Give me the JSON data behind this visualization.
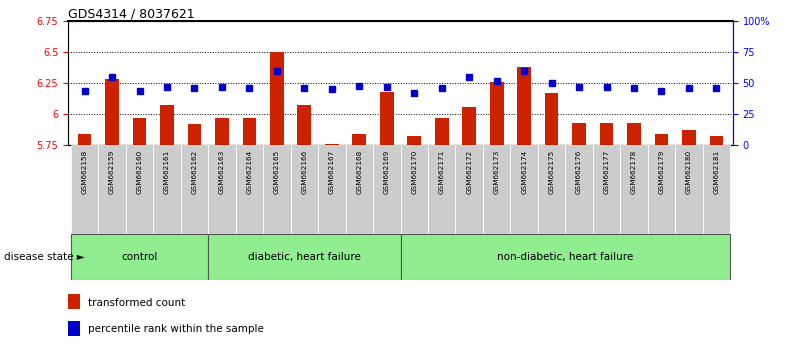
{
  "title": "GDS4314 / 8037621",
  "samples": [
    "GSM662158",
    "GSM662159",
    "GSM662160",
    "GSM662161",
    "GSM662162",
    "GSM662163",
    "GSM662164",
    "GSM662165",
    "GSM662166",
    "GSM662167",
    "GSM662168",
    "GSM662169",
    "GSM662170",
    "GSM662171",
    "GSM662172",
    "GSM662173",
    "GSM662174",
    "GSM662175",
    "GSM662176",
    "GSM662177",
    "GSM662178",
    "GSM662179",
    "GSM662180",
    "GSM662181"
  ],
  "red_values": [
    5.84,
    6.28,
    5.97,
    6.07,
    5.92,
    5.97,
    5.97,
    6.5,
    6.07,
    5.76,
    5.84,
    6.18,
    5.82,
    5.97,
    6.06,
    6.26,
    6.38,
    6.17,
    5.93,
    5.93,
    5.93,
    5.84,
    5.87,
    5.82
  ],
  "blue_values_pct": [
    44,
    55,
    44,
    47,
    46,
    47,
    46,
    60,
    46,
    45,
    48,
    47,
    42,
    46,
    55,
    52,
    60,
    50,
    47,
    47,
    46,
    44,
    46,
    46
  ],
  "group_boundaries": [
    0,
    5,
    12,
    24
  ],
  "group_labels": [
    "control",
    "diabetic, heart failure",
    "non-diabetic, heart failure"
  ],
  "ylim_left": [
    5.75,
    6.75
  ],
  "ylim_right": [
    0,
    100
  ],
  "yticks_left": [
    5.75,
    6.0,
    6.25,
    6.5,
    6.75
  ],
  "ytick_labels_left": [
    "5.75",
    "6",
    "6.25",
    "6.5",
    "6.75"
  ],
  "yticks_right": [
    0,
    25,
    50,
    75,
    100
  ],
  "ytick_labels_right": [
    "0",
    "25",
    "50",
    "75",
    "100%"
  ],
  "bar_color": "#CC2200",
  "dot_color": "#0000CC",
  "sample_bg_color": "#cccccc",
  "green_color": "#90EE90",
  "grid_dotted_vals": [
    6.0,
    6.25,
    6.5
  ],
  "disease_state_label": "disease state",
  "legend_items": [
    {
      "color": "#CC2200",
      "label": "transformed count"
    },
    {
      "color": "#0000CC",
      "label": "percentile rank within the sample"
    }
  ]
}
